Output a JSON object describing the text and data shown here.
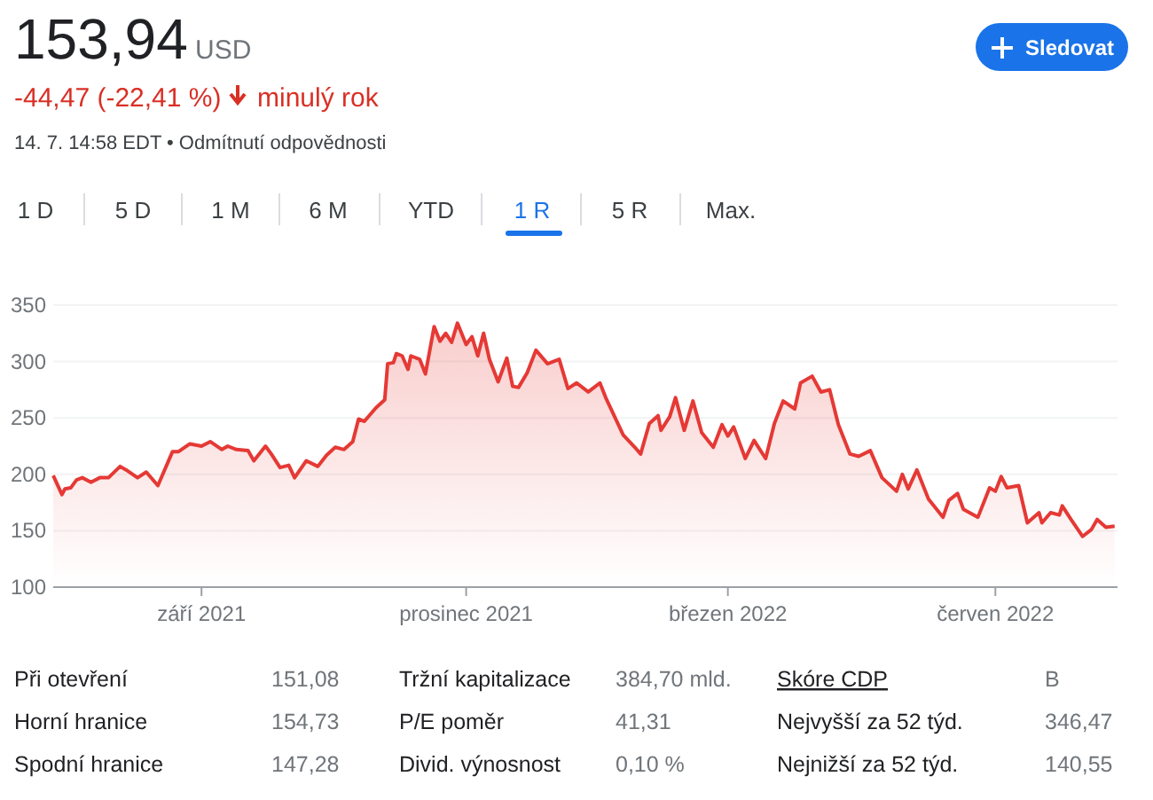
{
  "chart_data": {
    "type": "area",
    "color": "#e53935",
    "x": [
      "2021-07-12",
      "2021-07-15",
      "2021-07-16",
      "2021-07-18",
      "2021-07-20",
      "2021-07-22",
      "2021-07-25",
      "2021-07-28",
      "2021-07-31",
      "2021-08-04",
      "2021-08-06",
      "2021-08-10",
      "2021-08-13",
      "2021-08-17",
      "2021-08-22",
      "2021-08-24",
      "2021-08-28",
      "2021-09-01",
      "2021-09-04",
      "2021-09-08",
      "2021-09-10",
      "2021-09-13",
      "2021-09-17",
      "2021-09-19",
      "2021-09-23",
      "2021-09-25",
      "2021-09-28",
      "2021-10-01",
      "2021-10-03",
      "2021-10-07",
      "2021-10-11",
      "2021-10-14",
      "2021-10-17",
      "2021-10-20",
      "2021-10-23",
      "2021-10-25",
      "2021-10-27",
      "2021-10-31",
      "2021-11-03",
      "2021-11-04",
      "2021-11-06",
      "2021-11-07",
      "2021-11-09",
      "2021-11-11",
      "2021-11-12",
      "2021-11-15",
      "2021-11-17",
      "2021-11-20",
      "2021-11-22",
      "2021-11-24",
      "2021-11-26",
      "2021-11-28",
      "2021-12-01",
      "2021-12-03",
      "2021-12-05",
      "2021-12-07",
      "2021-12-09",
      "2021-12-12",
      "2021-12-15",
      "2021-12-17",
      "2021-12-19",
      "2021-12-22",
      "2021-12-25",
      "2021-12-29",
      "2022-01-02",
      "2022-01-05",
      "2022-01-08",
      "2022-01-12",
      "2022-01-16",
      "2022-01-18",
      "2022-01-24",
      "2022-01-28",
      "2022-01-30",
      "2022-02-02",
      "2022-02-05",
      "2022-02-06",
      "2022-02-09",
      "2022-02-11",
      "2022-02-14",
      "2022-02-17",
      "2022-02-20",
      "2022-02-24",
      "2022-02-27",
      "2022-03-01",
      "2022-03-03",
      "2022-03-07",
      "2022-03-10",
      "2022-03-14",
      "2022-03-17",
      "2022-03-20",
      "2022-03-24",
      "2022-03-26",
      "2022-03-30",
      "2022-04-02",
      "2022-04-05",
      "2022-04-08",
      "2022-04-12",
      "2022-04-15",
      "2022-04-19",
      "2022-04-23",
      "2022-04-28",
      "2022-04-30",
      "2022-05-02",
      "2022-05-05",
      "2022-05-09",
      "2022-05-14",
      "2022-05-16",
      "2022-05-19",
      "2022-05-21",
      "2022-05-26",
      "2022-05-30",
      "2022-06-01",
      "2022-06-03",
      "2022-06-05",
      "2022-06-09",
      "2022-06-12",
      "2022-06-16",
      "2022-06-17",
      "2022-06-20",
      "2022-06-23",
      "2022-06-24",
      "2022-06-27",
      "2022-07-01",
      "2022-07-04",
      "2022-07-06",
      "2022-07-09",
      "2022-07-12"
    ],
    "values": [
      199,
      182,
      187,
      188,
      195,
      197,
      193,
      197,
      197,
      207,
      204,
      197,
      202,
      190,
      220,
      220,
      227,
      225,
      229,
      222,
      225,
      222,
      221,
      212,
      225,
      218,
      206,
      208,
      197,
      212,
      207,
      217,
      224,
      222,
      229,
      249,
      247,
      259,
      266,
      298,
      299,
      307,
      305,
      293,
      305,
      302,
      289,
      331,
      318,
      325,
      317,
      334,
      315,
      322,
      305,
      325,
      302,
      282,
      303,
      278,
      277,
      290,
      310,
      298,
      302,
      276,
      281,
      273,
      281,
      268,
      235,
      224,
      218,
      245,
      252,
      239,
      251,
      268,
      239,
      265,
      237,
      224,
      244,
      234,
      242,
      214,
      230,
      214,
      245,
      265,
      258,
      281,
      287,
      273,
      275,
      244,
      218,
      216,
      221,
      197,
      185,
      200,
      187,
      204,
      178,
      162,
      177,
      183,
      169,
      162,
      188,
      185,
      198,
      188,
      190,
      157,
      166,
      157,
      166,
      164,
      172,
      160,
      145,
      151,
      160,
      153,
      154
    ],
    "xlim": [
      "2021-07-12",
      "2022-07-13"
    ],
    "xticks": [
      {
        "value": "2021-09-01",
        "label": "září 2021"
      },
      {
        "value": "2021-12-01",
        "label": "prosinec 2021"
      },
      {
        "value": "2022-03-01",
        "label": "březen 2022"
      },
      {
        "value": "2022-06-01",
        "label": "červen 2022"
      }
    ],
    "ylim": [
      100,
      350
    ],
    "yticks": [
      100,
      150,
      200,
      250,
      300,
      350
    ],
    "grid": "y",
    "annotations": [
      "153,94",
      "USD",
      "-44,47 (-22,41 %)",
      "minulý rok",
      "14. 7. 14:58 EDT • Odmítnutí odpovědnosti",
      "Sledovat",
      "1 D",
      "5 D",
      "1 M",
      "6 M",
      "YTD",
      "1 R",
      "5 R",
      "Max.",
      "Při otevření",
      "151,08",
      "Tržní kapitalizace",
      "384,70 mld.",
      "Skóre CDP",
      "B",
      "Horní hranice",
      "154,73",
      "P/E poměr",
      "41,31",
      "Nejvyšší za 52 týd.",
      "346,47",
      "Spodní hranice",
      "147,28",
      "Divid. výnosnost",
      "0,10 %",
      "Nejnižší za 52 týd.",
      "140,55"
    ]
  }
}
